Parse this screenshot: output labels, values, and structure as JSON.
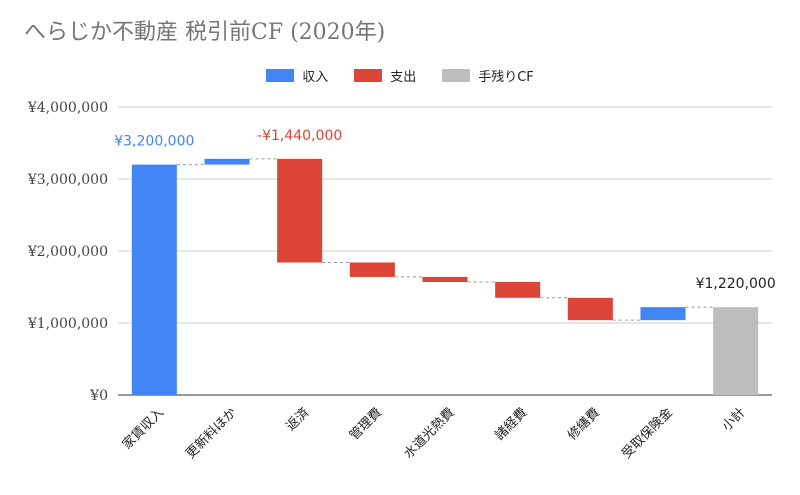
{
  "chart_data": {
    "type": "waterfall",
    "title": "へらじか不動産 税引前CF (2020年)",
    "legend": [
      {
        "label": "収入",
        "color": "#4285f4"
      },
      {
        "label": "支出",
        "color": "#db4437"
      },
      {
        "label": "手残りCF",
        "color": "#bdbdbd"
      }
    ],
    "ylim": [
      0,
      4000000
    ],
    "yticks": [
      "¥0",
      "¥1,000,000",
      "¥2,000,000",
      "¥3,000,000",
      "¥4,000,000"
    ],
    "grid": true,
    "legend_position": "top",
    "categories": [
      "家賃収入",
      "更新料ほか",
      "返済",
      "管理費",
      "水道光熱費",
      "諸経費",
      "修繕費",
      "受取保険金",
      "小計"
    ],
    "bars": [
      {
        "kind": "収入",
        "start": 0,
        "end": 3200000,
        "label": "¥3,200,000"
      },
      {
        "kind": "収入",
        "start": 3200000,
        "end": 3280000,
        "label": ""
      },
      {
        "kind": "支出",
        "start": 3280000,
        "end": 1840000,
        "label": "-¥1,440,000"
      },
      {
        "kind": "支出",
        "start": 1840000,
        "end": 1640000,
        "label": ""
      },
      {
        "kind": "支出",
        "start": 1640000,
        "end": 1570000,
        "label": ""
      },
      {
        "kind": "支出",
        "start": 1570000,
        "end": 1350000,
        "label": ""
      },
      {
        "kind": "支出",
        "start": 1350000,
        "end": 1040000,
        "label": ""
      },
      {
        "kind": "収入",
        "start": 1040000,
        "end": 1220000,
        "label": ""
      },
      {
        "kind": "手残りCF",
        "start": 0,
        "end": 1220000,
        "label": "¥1,220,000"
      }
    ]
  }
}
